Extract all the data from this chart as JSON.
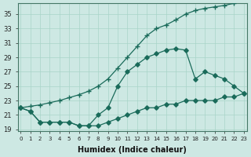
{
  "xlabel": "Humidex (Indice chaleur)",
  "bg_color": "#cde8e3",
  "grid_color": "#a8d4c8",
  "line_color": "#1a6b5a",
  "xlim": [
    -0.3,
    23.3
  ],
  "ylim": [
    18.8,
    36.5
  ],
  "xticks": [
    0,
    1,
    2,
    3,
    4,
    5,
    6,
    7,
    8,
    9,
    10,
    11,
    12,
    13,
    14,
    15,
    16,
    17,
    18,
    19,
    20,
    21,
    22,
    23
  ],
  "yticks": [
    19,
    21,
    23,
    25,
    27,
    29,
    31,
    33,
    35
  ],
  "line_upper_x": [
    0,
    1,
    2,
    3,
    4,
    5,
    6,
    7,
    8,
    9,
    10,
    11,
    12,
    13,
    14,
    15,
    16,
    17,
    18,
    19,
    20,
    21,
    22
  ],
  "line_upper_y": [
    22,
    22.2,
    22.4,
    22.7,
    23,
    23.4,
    23.8,
    24.3,
    25,
    26,
    27.5,
    29,
    30.5,
    32,
    33,
    33.5,
    34.2,
    35,
    35.5,
    35.8,
    36,
    36.2,
    36.5
  ],
  "line_mid_x": [
    0,
    1,
    2,
    3,
    4,
    5,
    6,
    7,
    8,
    9,
    10,
    11,
    12,
    13,
    14,
    15,
    16,
    17,
    18,
    19,
    20,
    21,
    22,
    23
  ],
  "line_mid_y": [
    22,
    21.5,
    20,
    20,
    20,
    20,
    19.5,
    19.5,
    21,
    22,
    25,
    27,
    28,
    29,
    29.5,
    30,
    30.2,
    30,
    26,
    27,
    26.5,
    26,
    25,
    24
  ],
  "line_low_x": [
    0,
    1,
    2,
    3,
    4,
    5,
    6,
    7,
    8,
    9,
    10,
    11,
    12,
    13,
    14,
    15,
    16,
    17,
    18,
    19,
    20,
    21,
    22,
    23
  ],
  "line_low_y": [
    22,
    21.5,
    20,
    20,
    20,
    20,
    19.5,
    19.5,
    19.5,
    20,
    20.5,
    21,
    21.5,
    22,
    22,
    22.5,
    22.5,
    23,
    23,
    23,
    23,
    23.5,
    23.5,
    24
  ]
}
